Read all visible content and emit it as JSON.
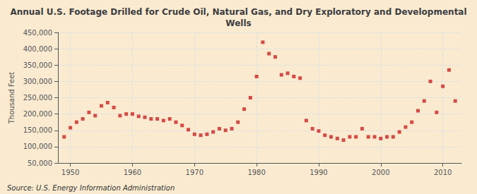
{
  "chart_data": {
    "type": "scatter",
    "title": "Annual U.S. Footage Drilled for Crude Oil, Natural Gas, and Dry Exploratory and Developmental\nWells",
    "ylabel": "Thousand Feet",
    "annotation": "Source: U.S. Energy Information Administration",
    "color": "#cc2222",
    "marker": "square",
    "grid": true,
    "x": [
      1949,
      1950,
      1951,
      1952,
      1953,
      1954,
      1955,
      1956,
      1957,
      1958,
      1959,
      1960,
      1961,
      1962,
      1963,
      1964,
      1965,
      1966,
      1967,
      1968,
      1969,
      1970,
      1971,
      1972,
      1973,
      1974,
      1975,
      1976,
      1977,
      1978,
      1979,
      1980,
      1981,
      1982,
      1983,
      1984,
      1985,
      1986,
      1987,
      1988,
      1989,
      1990,
      1991,
      1992,
      1993,
      1994,
      1995,
      1996,
      1997,
      1998,
      1999,
      2000,
      2001,
      2002,
      2003,
      2004,
      2005,
      2006,
      2007,
      2008,
      2009,
      2010,
      2011,
      2012
    ],
    "values": [
      130000,
      158000,
      175000,
      185000,
      205000,
      195000,
      225000,
      235000,
      220000,
      195000,
      200000,
      200000,
      193000,
      190000,
      185000,
      185000,
      180000,
      185000,
      175000,
      165000,
      152000,
      138000,
      135000,
      138000,
      145000,
      155000,
      150000,
      155000,
      175000,
      215000,
      250000,
      315000,
      420000,
      385000,
      375000,
      320000,
      325000,
      315000,
      310000,
      180000,
      155000,
      148000,
      135000,
      130000,
      125000,
      120000,
      130000,
      130000,
      155000,
      130000,
      130000,
      125000,
      130000,
      130000,
      145000,
      160000,
      175000,
      210000,
      240000,
      300000,
      205000,
      285000,
      335000,
      240000
    ],
    "xlim": [
      1948,
      2013
    ],
    "xticks": [
      1950,
      1960,
      1970,
      1980,
      1990,
      2000,
      2010
    ],
    "ylim": [
      50000,
      450000
    ],
    "yticks": [
      {
        "value": 50000,
        "label": "50,000"
      },
      {
        "value": 100000,
        "label": "100,000"
      },
      {
        "value": 150000,
        "label": "150,000"
      },
      {
        "value": 200000,
        "label": "200,000"
      },
      {
        "value": 250000,
        "label": "250,000"
      },
      {
        "value": 300000,
        "label": "300,000"
      },
      {
        "value": 350000,
        "label": "350,000"
      },
      {
        "value": 400000,
        "label": "400,000"
      },
      {
        "value": 450000,
        "label": "450,000"
      }
    ]
  }
}
